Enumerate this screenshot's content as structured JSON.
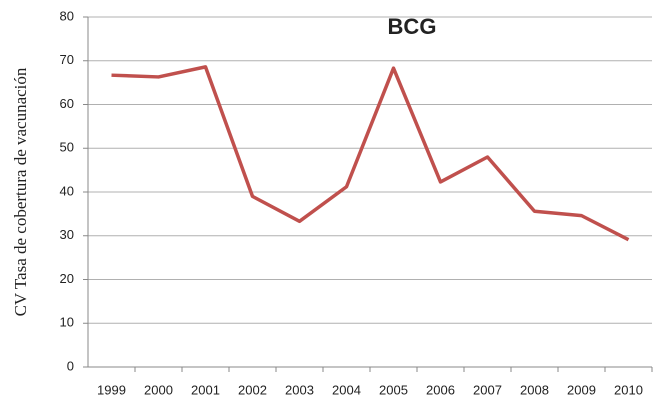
{
  "chart_data": {
    "type": "line",
    "title": "BCG",
    "ylabel": "CV Tasa de cobertura de vacunación",
    "categories": [
      "1999",
      "2000",
      "2001",
      "2002",
      "2003",
      "2004",
      "2005",
      "2006",
      "2007",
      "2008",
      "2009",
      "2010"
    ],
    "series": [
      {
        "name": "BCG",
        "color": "#c0504d",
        "values": [
          66.7,
          66.3,
          68.6,
          39.0,
          33.3,
          41.2,
          68.3,
          42.3,
          48.0,
          35.6,
          34.6,
          29.1
        ]
      }
    ],
    "ylim": [
      0,
      80
    ],
    "yticks": [
      0,
      10,
      20,
      30,
      40,
      50,
      60,
      70,
      80
    ],
    "grid": true
  }
}
